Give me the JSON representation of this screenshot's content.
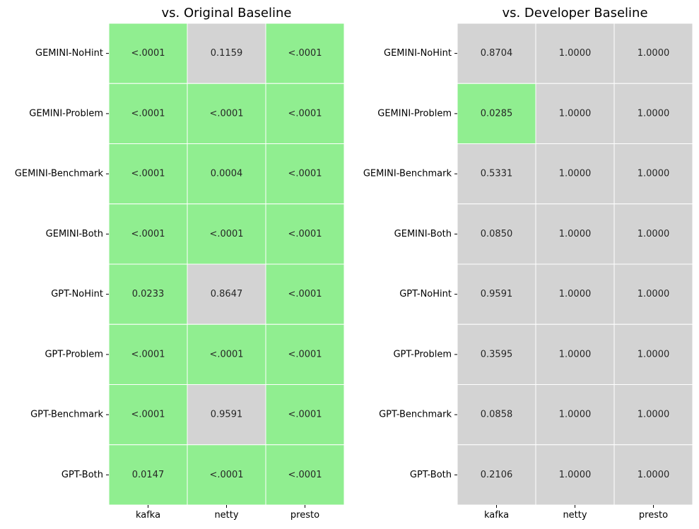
{
  "colors": {
    "significant": "#90ee90",
    "not_significant": "#d3d3d3",
    "grid": "#ffffff",
    "text": "#262626"
  },
  "chart_data": [
    {
      "type": "heatmap",
      "title": "vs. Original Baseline",
      "xlabel": "",
      "ylabel": "",
      "columns": [
        "kafka",
        "netty",
        "presto"
      ],
      "rows": [
        "GEMINI-NoHint",
        "GEMINI-Problem",
        "GEMINI-Benchmark",
        "GEMINI-Both",
        "GPT-NoHint",
        "GPT-Problem",
        "GPT-Benchmark",
        "GPT-Both"
      ],
      "values": [
        [
          "<.0001",
          "0.1159",
          "<.0001"
        ],
        [
          "<.0001",
          "<.0001",
          "<.0001"
        ],
        [
          "<.0001",
          "0.0004",
          "<.0001"
        ],
        [
          "<.0001",
          "<.0001",
          "<.0001"
        ],
        [
          "0.0233",
          "0.8647",
          "<.0001"
        ],
        [
          "<.0001",
          "<.0001",
          "<.0001"
        ],
        [
          "<.0001",
          "0.9591",
          "<.0001"
        ],
        [
          "0.0147",
          "<.0001",
          "<.0001"
        ]
      ],
      "significant": [
        [
          true,
          false,
          true
        ],
        [
          true,
          true,
          true
        ],
        [
          true,
          true,
          true
        ],
        [
          true,
          true,
          true
        ],
        [
          true,
          false,
          true
        ],
        [
          true,
          true,
          true
        ],
        [
          true,
          false,
          true
        ],
        [
          true,
          true,
          true
        ]
      ]
    },
    {
      "type": "heatmap",
      "title": "vs. Developer Baseline",
      "xlabel": "",
      "ylabel": "",
      "columns": [
        "kafka",
        "netty",
        "presto"
      ],
      "rows": [
        "GEMINI-NoHint",
        "GEMINI-Problem",
        "GEMINI-Benchmark",
        "GEMINI-Both",
        "GPT-NoHint",
        "GPT-Problem",
        "GPT-Benchmark",
        "GPT-Both"
      ],
      "values": [
        [
          "0.8704",
          "1.0000",
          "1.0000"
        ],
        [
          "0.0285",
          "1.0000",
          "1.0000"
        ],
        [
          "0.5331",
          "1.0000",
          "1.0000"
        ],
        [
          "0.0850",
          "1.0000",
          "1.0000"
        ],
        [
          "0.9591",
          "1.0000",
          "1.0000"
        ],
        [
          "0.3595",
          "1.0000",
          "1.0000"
        ],
        [
          "0.0858",
          "1.0000",
          "1.0000"
        ],
        [
          "0.2106",
          "1.0000",
          "1.0000"
        ]
      ],
      "significant": [
        [
          false,
          false,
          false
        ],
        [
          true,
          false,
          false
        ],
        [
          false,
          false,
          false
        ],
        [
          false,
          false,
          false
        ],
        [
          false,
          false,
          false
        ],
        [
          false,
          false,
          false
        ],
        [
          false,
          false,
          false
        ],
        [
          false,
          false,
          false
        ]
      ]
    }
  ]
}
